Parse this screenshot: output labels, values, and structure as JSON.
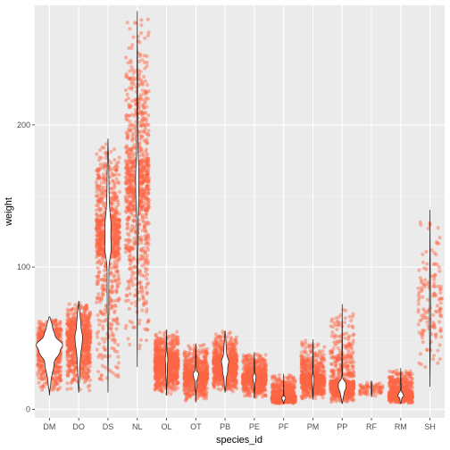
{
  "chart_data": {
    "type": "violin-jitter",
    "xlabel": "species_id",
    "ylabel": "weight",
    "ylim": [
      -6,
      284
    ],
    "y_ticks": [
      0,
      100,
      200
    ],
    "grid": true,
    "colors": {
      "points": "#fc6545",
      "violin_fill": "#ffffff",
      "violin_line": "#1a1a1a",
      "panel": "#ebebeb",
      "grid_major": "#ffffff",
      "grid_minor": "#f5f5f5"
    },
    "categories": [
      "DM",
      "DO",
      "DS",
      "NL",
      "OL",
      "OT",
      "PB",
      "PE",
      "PF",
      "PM",
      "PP",
      "RF",
      "RM",
      "SH"
    ],
    "series": [
      {
        "category": "DM",
        "min": 10,
        "max": 65,
        "q1": 37,
        "median": 44,
        "q3": 48,
        "n": 10500
      },
      {
        "category": "DO",
        "min": 12,
        "max": 76,
        "q1": 41,
        "median": 48,
        "q3": 55,
        "n": 3000
      },
      {
        "category": "DS",
        "min": 12,
        "max": 190,
        "q1": 107,
        "median": 120,
        "q3": 135,
        "n": 2500
      },
      {
        "category": "NL",
        "min": 30,
        "max": 280,
        "q1": 139,
        "median": 159,
        "q3": 176,
        "n": 1250
      },
      {
        "category": "OL",
        "min": 10,
        "max": 56,
        "q1": 26,
        "median": 33,
        "q3": 37,
        "n": 1000
      },
      {
        "category": "OT",
        "min": 5,
        "max": 46,
        "q1": 21,
        "median": 24,
        "q3": 26,
        "n": 2250
      },
      {
        "category": "PB",
        "min": 12,
        "max": 55,
        "q1": 26,
        "median": 32,
        "q3": 36,
        "n": 2850
      },
      {
        "category": "PE",
        "min": 8,
        "max": 40,
        "q1": 19,
        "median": 22,
        "q3": 24,
        "n": 1300
      },
      {
        "category": "PF",
        "min": 4,
        "max": 25,
        "q1": 7,
        "median": 8,
        "q3": 9,
        "n": 1550
      },
      {
        "category": "PM",
        "min": 7,
        "max": 49,
        "q1": 18,
        "median": 21,
        "q3": 24,
        "n": 900
      },
      {
        "category": "PP",
        "min": 4,
        "max": 74,
        "q1": 14,
        "median": 17,
        "q3": 20,
        "n": 3100
      },
      {
        "category": "RF",
        "min": 9,
        "max": 20,
        "q1": 12,
        "median": 15,
        "q3": 16,
        "n": 80
      },
      {
        "category": "RM",
        "min": 4,
        "max": 29,
        "q1": 9,
        "median": 10,
        "q3": 12,
        "n": 2500
      },
      {
        "category": "SH",
        "min": 16,
        "max": 140,
        "q1": 55,
        "median": 71,
        "q3": 91,
        "n": 140
      }
    ]
  }
}
